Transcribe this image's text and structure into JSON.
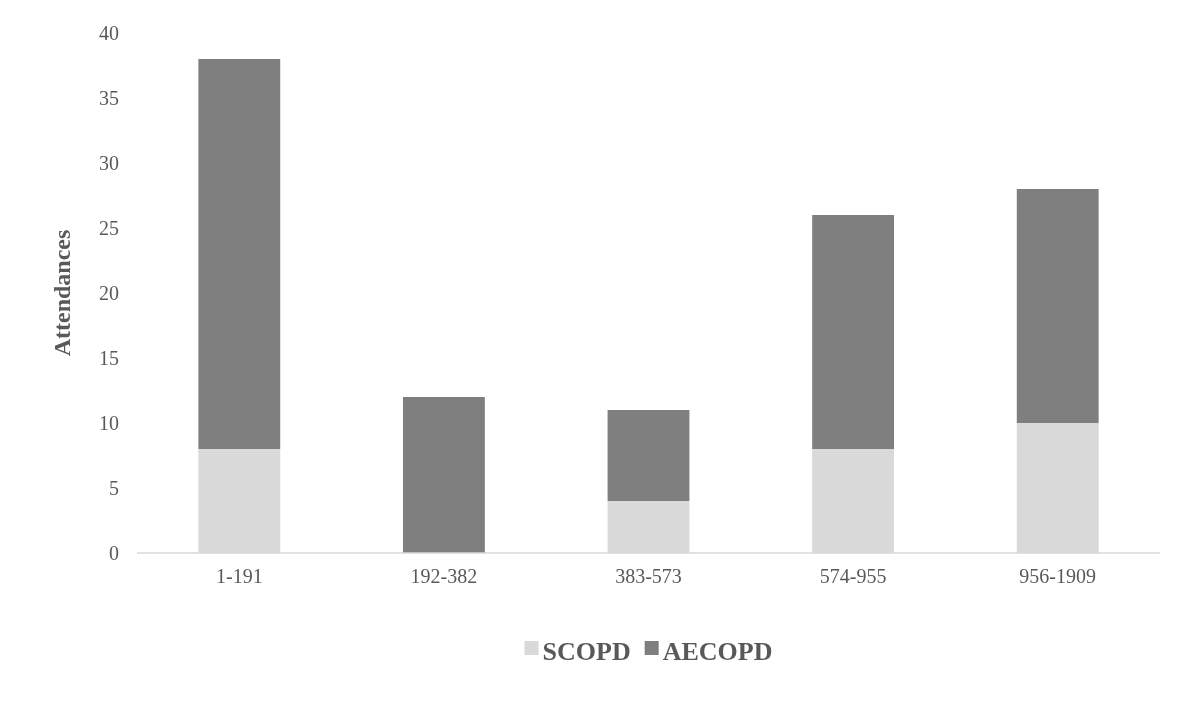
{
  "chart_data": {
    "type": "bar",
    "stacked": true,
    "ylabel": "Attendances",
    "categories": [
      "1-191",
      "192-382",
      "383-573",
      "574-955",
      "956-1909"
    ],
    "series": [
      {
        "name": "SCOPD",
        "color": "#d9d9d9",
        "values": [
          8,
          0,
          4,
          8,
          10
        ]
      },
      {
        "name": "AECOPD",
        "color": "#7f7f7f",
        "values": [
          30,
          12,
          7,
          18,
          18
        ]
      }
    ],
    "ylim": [
      0,
      40
    ],
    "yticks": [
      0,
      5,
      10,
      15,
      20,
      25,
      30,
      35,
      40
    ],
    "grid": false,
    "legend": "bottom"
  }
}
